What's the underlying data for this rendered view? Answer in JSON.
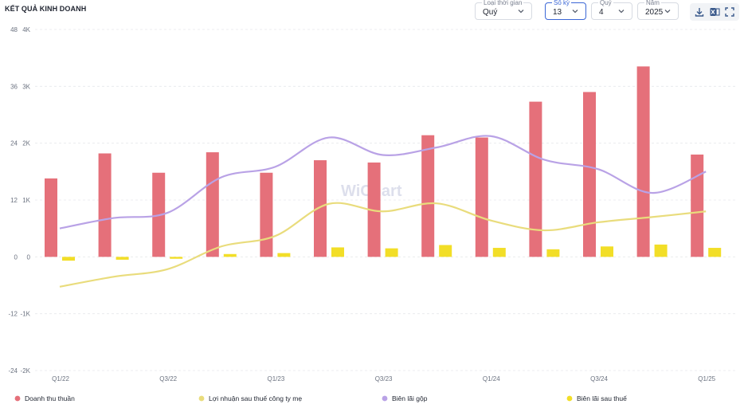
{
  "header": {
    "title": "KẾT QUẢ KINH DOANH",
    "controls": [
      {
        "label": "Loại thời gian",
        "value": "Quý"
      },
      {
        "label": "Số kỳ",
        "value": "13"
      },
      {
        "label": "Quý",
        "value": "4"
      },
      {
        "label": "Năm",
        "value": "2025"
      }
    ],
    "tools": [
      "download-icon",
      "excel-icon",
      "fullscreen-icon"
    ]
  },
  "watermark": "WiChart",
  "colors": {
    "revenue": "#e5707a",
    "profit": "#e9dc7c",
    "gross_margin": "#b9a2e6",
    "net_margin": "#f2de27",
    "active": "#3b67d6"
  },
  "chart_data": {
    "type": "bar",
    "categories": [
      "Q1/22",
      "Q2/22",
      "Q3/22",
      "Q4/22",
      "Q1/23",
      "Q2/23",
      "Q3/23",
      "Q4/23",
      "Q1/24",
      "Q2/24",
      "Q3/24",
      "Q4/24",
      "Q1/25"
    ],
    "x_tick_labels": [
      "Q1/22",
      "",
      "Q3/22",
      "",
      "Q1/23",
      "",
      "Q3/23",
      "",
      "Q1/24",
      "",
      "Q3/24",
      "",
      "Q1/25"
    ],
    "left_axis": {
      "ticks": [
        "48",
        "36",
        "24",
        "12",
        "0",
        "-12",
        "-24"
      ],
      "ylim": [
        -24,
        48
      ]
    },
    "right_axis": {
      "ticks": [
        "4K",
        "3K",
        "2K",
        "1K",
        "0",
        "-1K",
        "-2K"
      ],
      "ylim": [
        -2000,
        4000
      ]
    },
    "grid": true,
    "legend_position": "bottom",
    "series": [
      {
        "name": "Doanh thu thuần",
        "type": "bar",
        "axis": "right",
        "values": [
          1380,
          1820,
          1480,
          1840,
          1480,
          1700,
          1660,
          2140,
          2100,
          2730,
          2900,
          3350,
          1800
        ]
      },
      {
        "name": "Lợi nhuận sau thuế công ty mẹ",
        "type": "line",
        "axis": "left",
        "values": [
          -6.3,
          -4.2,
          -2.6,
          2.2,
          4.4,
          11.2,
          9.6,
          11.3,
          7.7,
          5.6,
          7.3,
          8.4,
          9.6
        ]
      },
      {
        "name": "Biên lãi gộp",
        "type": "line",
        "axis": "left",
        "values": [
          6.0,
          8.2,
          9.3,
          16.8,
          19.0,
          25.2,
          21.5,
          23.1,
          25.5,
          20.5,
          18.5,
          13.5,
          18.0
        ]
      },
      {
        "name": "Biên lãi sau thuế",
        "type": "bar",
        "axis": "left",
        "values": [
          -0.8,
          -0.6,
          -0.4,
          0.6,
          0.8,
          2.0,
          1.8,
          2.5,
          1.9,
          1.6,
          2.2,
          2.6,
          1.9
        ]
      }
    ]
  }
}
